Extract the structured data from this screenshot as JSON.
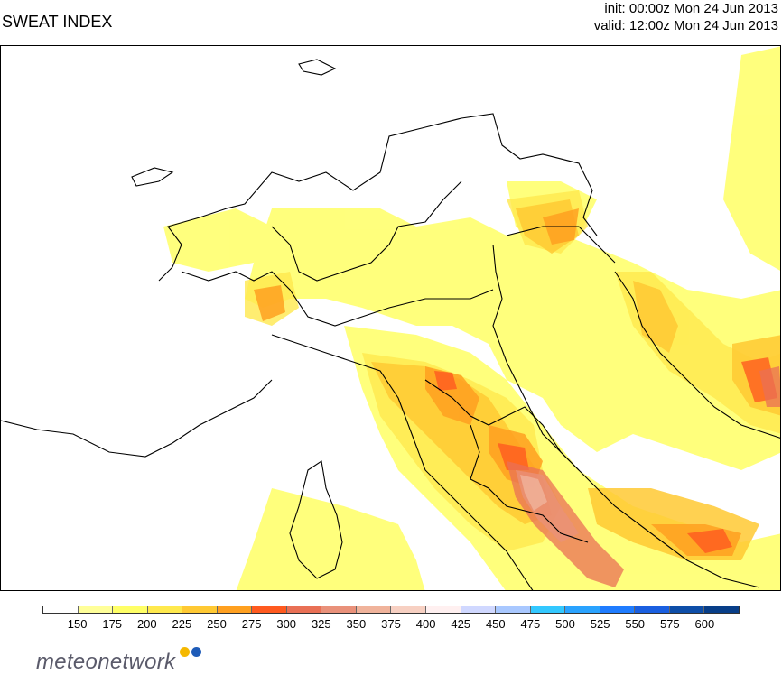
{
  "header": {
    "title": "SWEAT INDEX",
    "init": "init: 00:00z Mon 24 Jun 2013",
    "valid": "valid: 12:00z Mon 24 Jun 2013"
  },
  "legend": {
    "labels": [
      "150",
      "175",
      "200",
      "225",
      "250",
      "275",
      "300",
      "325",
      "350",
      "375",
      "400",
      "425",
      "450",
      "475",
      "500",
      "525",
      "550",
      "575",
      "600"
    ],
    "colors": [
      "#ffffff",
      "#ffff99",
      "#ffff66",
      "#ffe94d",
      "#ffc933",
      "#ffa020",
      "#ff5a1f",
      "#e97055",
      "#e9917a",
      "#f0b39b",
      "#f7d0c2",
      "#fff0f0",
      "#d0d8ff",
      "#a9c8ff",
      "#33c8ff",
      "#2aa3ff",
      "#1f7cff",
      "#1a5fe0",
      "#0e4ea8",
      "#083e88"
    ]
  },
  "brand": {
    "name": "meteonetwork",
    "dot_colors": [
      "#f5b800",
      "#1e5bb8"
    ]
  }
}
